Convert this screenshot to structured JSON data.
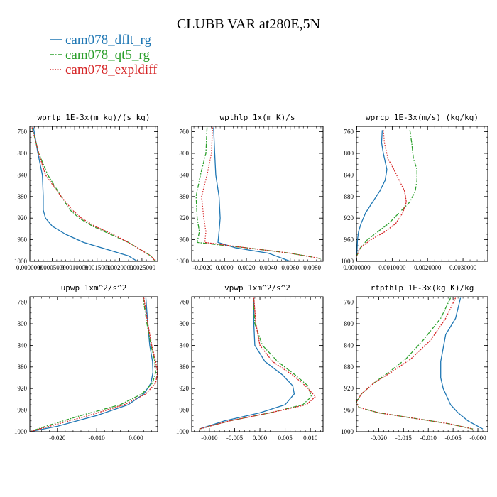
{
  "figure": {
    "title": "CLUBB VAR at280E,5N",
    "legend": [
      {
        "label": "cam078_dflt_rg",
        "color": "#1f77b4",
        "dash": "solid"
      },
      {
        "label": "cam078_qt5_rg",
        "color": "#2ca02c",
        "dash": "dashdot"
      },
      {
        "label": "cam078_expldiff",
        "color": "#d62728",
        "dash": "dotted"
      }
    ]
  },
  "chart_data": [
    {
      "type": "line",
      "title": "wprtp  1E-3x(m kg)/(s kg)",
      "xlim": [
        0,
        0.00285
      ],
      "ylim": [
        1000,
        750
      ],
      "xticks": [
        0,
        0.0005,
        0.001,
        0.0015,
        0.002,
        0.0025
      ],
      "xtick_labels": [
        "0.0000000",
        "0.0005000",
        "0.0010000",
        "0.0015000",
        "0.0020000",
        "0.0025000"
      ],
      "yticks": [
        760,
        800,
        840,
        880,
        920,
        960,
        1000
      ],
      "ytick_labels": [
        "760",
        "800",
        "840",
        "880",
        "920",
        "960",
        "1000"
      ],
      "series": [
        {
          "name": "cam078_dflt_rg",
          "y": [
            752,
            800,
            840,
            880,
            905,
            920,
            935,
            950,
            965,
            980,
            990,
            1000
          ],
          "x": [
            8e-05,
            0.00018,
            0.00028,
            0.0003,
            0.0003,
            0.00035,
            0.0005,
            0.0008,
            0.0012,
            0.0018,
            0.0022,
            0.0024
          ]
        },
        {
          "name": "cam078_qt5_rg",
          "y": [
            752,
            800,
            840,
            880,
            905,
            920,
            935,
            950,
            965,
            980,
            990,
            1000
          ],
          "x": [
            5e-05,
            0.0002,
            0.0004,
            0.0007,
            0.0009,
            0.0011,
            0.0014,
            0.0018,
            0.0022,
            0.0025,
            0.0027,
            0.0028
          ]
        },
        {
          "name": "cam078_expldiff",
          "y": [
            752,
            800,
            840,
            880,
            905,
            920,
            935,
            950,
            965,
            980,
            990,
            1000
          ],
          "x": [
            5e-05,
            0.0002,
            0.00035,
            0.0007,
            0.00095,
            0.00115,
            0.00145,
            0.00185,
            0.0022,
            0.0025,
            0.0027,
            0.0028
          ]
        }
      ]
    },
    {
      "type": "line",
      "title": "wpthlp  1x(m K)/s",
      "xlim": [
        -0.003,
        0.009
      ],
      "ylim": [
        1000,
        750
      ],
      "xticks": [
        -0.002,
        0,
        0.002,
        0.004,
        0.006,
        0.008
      ],
      "xtick_labels": [
        "-0.0020",
        "0.0000",
        "0.0020",
        "0.0040",
        "0.0060",
        "0.0080"
      ],
      "yticks": [
        760,
        800,
        840,
        880,
        920,
        960,
        1000
      ],
      "ytick_labels": [
        "760",
        "800",
        "840",
        "880",
        "920",
        "960",
        "1000"
      ],
      "series": [
        {
          "name": "cam078_dflt_rg",
          "y": [
            752,
            800,
            840,
            880,
            920,
            945,
            965,
            975,
            985,
            1000
          ],
          "x": [
            -0.001,
            -0.0009,
            -0.0008,
            -0.0005,
            -0.0004,
            -0.0005,
            -0.0006,
            0.001,
            0.004,
            0.006
          ]
        },
        {
          "name": "cam078_qt5_rg",
          "y": [
            752,
            800,
            840,
            880,
            920,
            945,
            965,
            975,
            985,
            995
          ],
          "x": [
            -0.0016,
            -0.0017,
            -0.0022,
            -0.0026,
            -0.0025,
            -0.0023,
            -0.0025,
            0.002,
            0.006,
            0.0088
          ]
        },
        {
          "name": "cam078_expldiff",
          "y": [
            752,
            800,
            840,
            880,
            920,
            945,
            965,
            975,
            985,
            995
          ],
          "x": [
            -0.0011,
            -0.0012,
            -0.0016,
            -0.0021,
            -0.0019,
            -0.0017,
            -0.0018,
            0.002,
            0.006,
            0.0088
          ]
        }
      ]
    },
    {
      "type": "line",
      "title": "wprcp  1E-3x(m/s) (kg/kg)",
      "xlim": [
        -1e-05,
        0.0037
      ],
      "ylim": [
        1000,
        750
      ],
      "xticks": [
        0,
        0.001,
        0.002,
        0.003
      ],
      "xtick_labels": [
        "0.0000000",
        "0.0010000",
        "0.0020000",
        "0.0030000"
      ],
      "yticks": [
        760,
        800,
        840,
        880,
        920,
        960,
        1000
      ],
      "ytick_labels": [
        "760",
        "800",
        "840",
        "880",
        "920",
        "960",
        "1000"
      ],
      "series": [
        {
          "name": "cam078_dflt_rg",
          "y": [
            757,
            780,
            800,
            830,
            850,
            870,
            890,
            910,
            930,
            945,
            960,
            975,
            990
          ],
          "x": [
            0.00072,
            0.0007,
            0.00075,
            0.00085,
            0.0008,
            0.00065,
            0.00045,
            0.00025,
            0.00012,
            5e-05,
            2e-05,
            1e-05,
            0.0
          ]
        },
        {
          "name": "cam078_qt5_rg",
          "y": [
            757,
            780,
            810,
            830,
            850,
            870,
            890,
            910,
            930,
            945,
            960,
            975,
            990
          ],
          "x": [
            0.0015,
            0.00155,
            0.0016,
            0.0017,
            0.0017,
            0.00165,
            0.0015,
            0.0012,
            0.0009,
            0.0006,
            0.0003,
            0.0001,
            0.0
          ]
        },
        {
          "name": "cam078_expldiff",
          "y": [
            757,
            780,
            810,
            830,
            850,
            870,
            890,
            910,
            930,
            945,
            960,
            975,
            990
          ],
          "x": [
            0.00075,
            0.00078,
            0.00088,
            0.00105,
            0.0012,
            0.00135,
            0.0014,
            0.0013,
            0.0011,
            0.0008,
            0.0004,
            0.0001,
            0.0
          ]
        }
      ]
    },
    {
      "type": "line",
      "title": "upwp  1xm^2/s^2",
      "xlim": [
        -0.027,
        0.0055
      ],
      "ylim": [
        1000,
        750
      ],
      "xticks": [
        -0.02,
        -0.01,
        0
      ],
      "xtick_labels": [
        "-0.020",
        "-0.010",
        "0.000"
      ],
      "yticks": [
        760,
        800,
        840,
        880,
        920,
        960,
        1000
      ],
      "ytick_labels": [
        "760",
        "800",
        "840",
        "880",
        "920",
        "960",
        "1000"
      ],
      "series": [
        {
          "name": "cam078_dflt_rg",
          "y": [
            752,
            800,
            840,
            870,
            890,
            910,
            930,
            950,
            970,
            990,
            1000
          ],
          "x": [
            0.0025,
            0.003,
            0.0035,
            0.0042,
            0.0043,
            0.0038,
            0.002,
            -0.002,
            -0.01,
            -0.02,
            -0.027
          ]
        },
        {
          "name": "cam078_qt5_rg",
          "y": [
            752,
            800,
            840,
            870,
            890,
            910,
            930,
            950,
            970,
            990,
            1000
          ],
          "x": [
            0.0018,
            0.0028,
            0.0038,
            0.0048,
            0.005,
            0.0042,
            0.0015,
            -0.004,
            -0.014,
            -0.023,
            -0.027
          ]
        },
        {
          "name": "cam078_expldiff",
          "y": [
            752,
            800,
            840,
            870,
            890,
            910,
            930,
            950,
            970,
            990,
            1000
          ],
          "x": [
            0.002,
            0.003,
            0.004,
            0.005,
            0.0055,
            0.005,
            0.0025,
            -0.003,
            -0.012,
            -0.022,
            -0.027
          ]
        }
      ]
    },
    {
      "type": "line",
      "title": "vpwp  1xm^2/s^2",
      "xlim": [
        -0.0135,
        0.0125
      ],
      "ylim": [
        1000,
        750
      ],
      "xticks": [
        -0.01,
        -0.005,
        0,
        0.005,
        0.01
      ],
      "xtick_labels": [
        "-0.010",
        "-0.005",
        "0.000",
        "0.005",
        "0.010"
      ],
      "yticks": [
        760,
        800,
        840,
        880,
        920,
        960,
        1000
      ],
      "ytick_labels": [
        "760",
        "800",
        "840",
        "880",
        "920",
        "960",
        "1000"
      ],
      "series": [
        {
          "name": "cam078_dflt_rg",
          "y": [
            752,
            800,
            840,
            870,
            895,
            915,
            930,
            950,
            965,
            980,
            995
          ],
          "x": [
            -0.0012,
            -0.0012,
            -0.001,
            0.001,
            0.0045,
            0.0065,
            0.0068,
            0.005,
            0.0,
            -0.007,
            -0.012
          ]
        },
        {
          "name": "cam078_qt5_rg",
          "y": [
            752,
            800,
            840,
            870,
            895,
            915,
            935,
            950,
            965,
            980,
            995
          ],
          "x": [
            -0.0013,
            -0.001,
            0.0005,
            0.0035,
            0.007,
            0.0095,
            0.0102,
            0.0085,
            0.002,
            -0.006,
            -0.012
          ]
        },
        {
          "name": "cam078_expldiff",
          "y": [
            752,
            800,
            840,
            870,
            895,
            915,
            935,
            950,
            965,
            980,
            995
          ],
          "x": [
            -0.0012,
            -0.0008,
            0.0,
            0.0025,
            0.0065,
            0.009,
            0.011,
            0.0092,
            0.002,
            -0.006,
            -0.012
          ]
        }
      ]
    },
    {
      "type": "line",
      "title": "rtpthlp  1E-3x(kg K)/kg",
      "xlim": [
        -0.0245,
        0.002
      ],
      "ylim": [
        1000,
        750
      ],
      "xticks": [
        -0.02,
        -0.015,
        -0.01,
        -0.005,
        0
      ],
      "xtick_labels": [
        "-0.020",
        "-0.015",
        "-0.010",
        "-0.005",
        "-0.000"
      ],
      "yticks": [
        760,
        800,
        840,
        880,
        920,
        960,
        1000
      ],
      "ytick_labels": [
        "760",
        "800",
        "840",
        "880",
        "920",
        "960",
        "1000"
      ],
      "series": [
        {
          "name": "cam078_dflt_rg",
          "y": [
            752,
            790,
            820,
            845,
            870,
            900,
            920,
            950,
            965,
            980,
            995
          ],
          "x": [
            -0.0035,
            -0.0045,
            -0.0065,
            -0.007,
            -0.0075,
            -0.0075,
            -0.007,
            -0.0055,
            -0.004,
            -0.002,
            0.001
          ]
        },
        {
          "name": "cam078_qt5_rg",
          "y": [
            752,
            790,
            830,
            865,
            890,
            910,
            930,
            945,
            955,
            965,
            975,
            985,
            995
          ],
          "x": [
            -0.0055,
            -0.0075,
            -0.011,
            -0.0145,
            -0.018,
            -0.021,
            -0.0235,
            -0.0245,
            -0.024,
            -0.02,
            -0.013,
            -0.006,
            -0.001
          ]
        },
        {
          "name": "cam078_expldiff",
          "y": [
            752,
            790,
            830,
            865,
            890,
            910,
            930,
            945,
            955,
            965,
            975,
            985,
            995
          ],
          "x": [
            -0.0045,
            -0.0065,
            -0.0095,
            -0.0135,
            -0.0175,
            -0.021,
            -0.0235,
            -0.0245,
            -0.024,
            -0.02,
            -0.013,
            -0.006,
            -0.001
          ]
        }
      ]
    }
  ]
}
